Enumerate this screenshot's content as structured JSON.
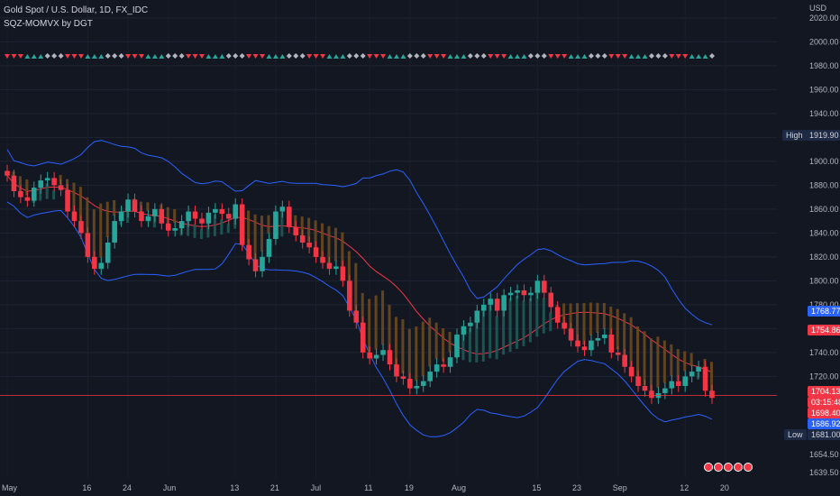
{
  "legend": {
    "symbol": "Gold Spot / U.S. Dollar, 1D, FX_IDC",
    "indicator": "SQZ-MOMVX by DGT"
  },
  "price_tags": {
    "high_label": "High",
    "high_value": "1919.90",
    "low_label": "Low",
    "low_value": "1681.00",
    "upper_band": "1768.77",
    "middle_band": "1754.86",
    "last": "1704.13",
    "countdown": "03:15:48",
    "lower_band_close": "1698.40",
    "lower_band": "1686.92"
  },
  "colors": {
    "background": "#131722",
    "bull": "#26a69a",
    "bear": "#f23645",
    "band": "#2962ff",
    "basis": "#f23645",
    "momentum_bull": "#1e5b58",
    "momentum_bear": "#6b4a1f"
  },
  "chart_data": {
    "type": "candlestick",
    "currency": "USD",
    "ylim": [
      1635,
      2035
    ],
    "y_ticks": [
      2020,
      2000,
      1980,
      1960,
      1940,
      1920,
      1900,
      1880,
      1860,
      1840,
      1820,
      1800,
      1780,
      1760,
      1740,
      1720,
      1698.4,
      1681,
      1654.5,
      1639.5
    ],
    "y_tick_labels": [
      "2020.00",
      "2000.00",
      "1980.00",
      "1960.00",
      "1940.00",
      "1920.00",
      "1900.00",
      "1880.00",
      "1860.00",
      "1840.00",
      "1820.00",
      "1800.00",
      "1780.00",
      "1760.00",
      "1740.00",
      "1720.00",
      "1698.40",
      "1681.00",
      "1654.50",
      "1639.50"
    ],
    "x_tick_labels": [
      "May",
      "16",
      "24",
      "Jun",
      "13",
      "21",
      "Jul",
      "11",
      "19",
      "Aug",
      "15",
      "23",
      "Sep",
      "12",
      "20"
    ],
    "x_tick_index": [
      0,
      12,
      18,
      24,
      34,
      40,
      46,
      54,
      60,
      67,
      79,
      85,
      91,
      101,
      107
    ],
    "closes": [
      1888,
      1875,
      1870,
      1867,
      1878,
      1884,
      1886,
      1880,
      1876,
      1858,
      1850,
      1840,
      1820,
      1810,
      1815,
      1832,
      1850,
      1858,
      1868,
      1858,
      1850,
      1854,
      1860,
      1848,
      1842,
      1844,
      1850,
      1858,
      1852,
      1848,
      1857,
      1860,
      1856,
      1852,
      1864,
      1830,
      1818,
      1808,
      1820,
      1835,
      1858,
      1862,
      1845,
      1838,
      1832,
      1828,
      1820,
      1815,
      1810,
      1812,
      1800,
      1775,
      1765,
      1740,
      1735,
      1738,
      1742,
      1730,
      1720,
      1718,
      1710,
      1712,
      1716,
      1724,
      1730,
      1728,
      1736,
      1755,
      1762,
      1765,
      1775,
      1780,
      1785,
      1775,
      1788,
      1790,
      1792,
      1788,
      1790,
      1800,
      1790,
      1778,
      1765,
      1760,
      1750,
      1745,
      1742,
      1750,
      1752,
      1755,
      1740,
      1738,
      1728,
      1720,
      1712,
      1708,
      1702,
      1706,
      1710,
      1716,
      1712,
      1720,
      1724,
      1728,
      1708,
      1702
    ],
    "indicator_markers": "row of up/down triangles and diamonds above the price",
    "last_price": 1704.13,
    "high": 1919.9,
    "low": 1681.0,
    "bollinger_upper_last": 1768.77,
    "basis_last": 1754.86,
    "lower_last": 1686.92
  }
}
